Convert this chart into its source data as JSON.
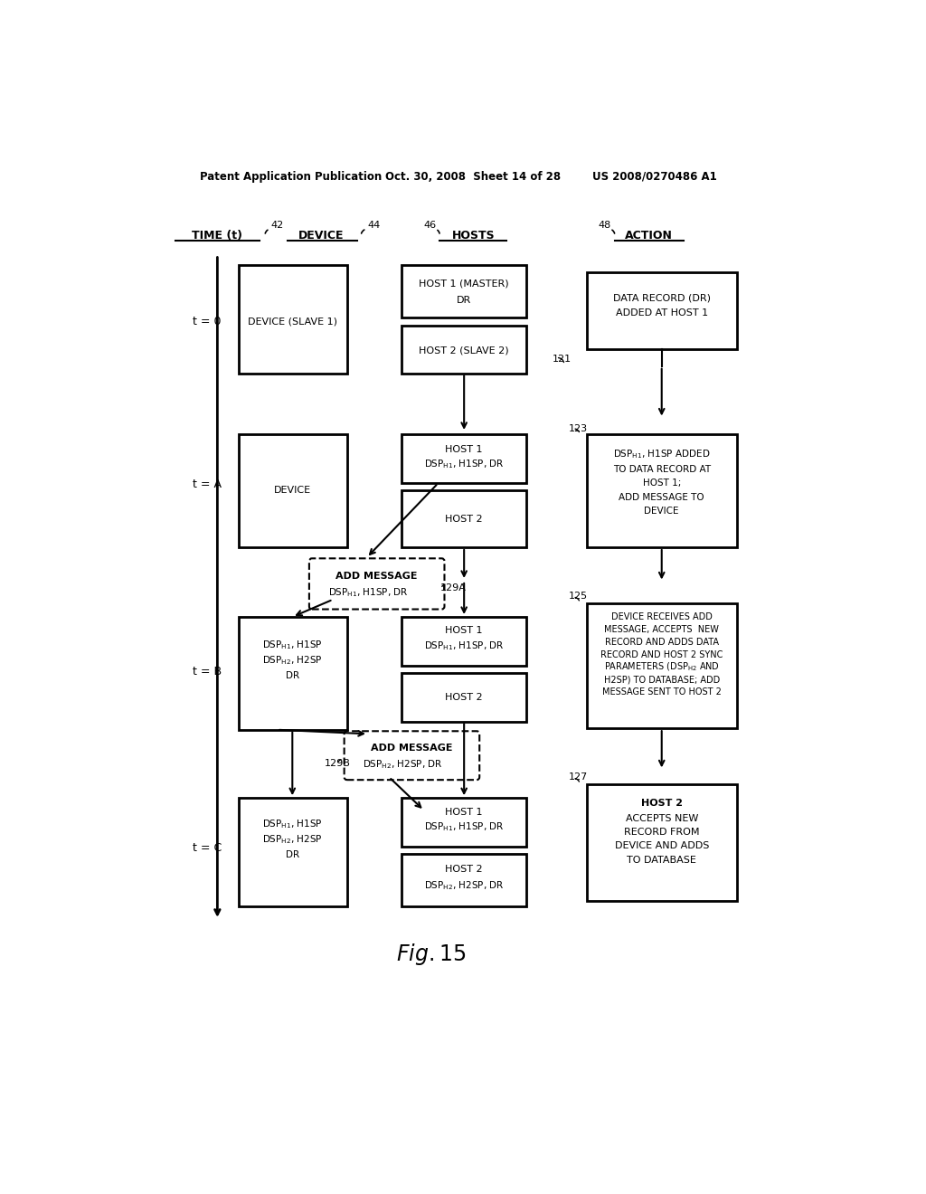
{
  "bg_color": "#ffffff",
  "header_text1": "Patent Application Publication",
  "header_text2": "Oct. 30, 2008  Sheet 14 of 28",
  "header_text3": "US 2008/0270486 A1",
  "fig_caption": "Fig. 15"
}
